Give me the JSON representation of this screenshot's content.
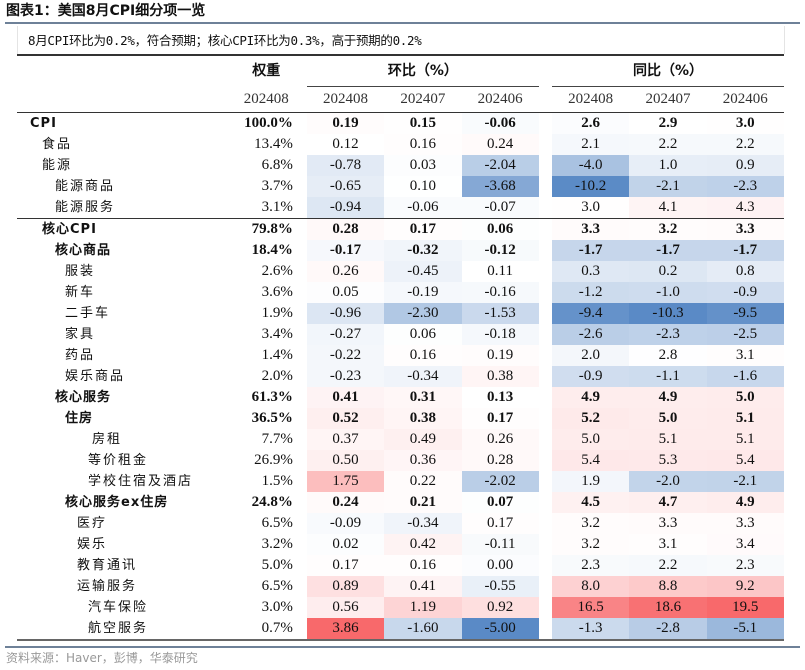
{
  "title": "图表1：美国8月CPI细分项一览",
  "subtitle": "8月CPI环比为0.2%，符合预期；核心CPI环比为0.3%，高于预期的0.2%",
  "header": {
    "weight_label": "权重",
    "mom_label": "环比（%）",
    "yoy_label": "同比（%）",
    "weight_period": "202408",
    "mom_periods": [
      "202408",
      "202407",
      "202406"
    ],
    "yoy_periods": [
      "202408",
      "202407",
      "202406"
    ]
  },
  "colors": {
    "positive": "#f8696b",
    "negative": "#5a8ac6",
    "neutral": "#ffffff"
  },
  "rows": [
    {
      "label": "CPI",
      "level": 0,
      "bold": true,
      "weight": "100.0%",
      "mom": [
        "0.19",
        "0.15",
        "-0.06"
      ],
      "yoy": [
        "2.6",
        "2.9",
        "3.0"
      ]
    },
    {
      "label": "食品",
      "level": 1,
      "bold": false,
      "weight": "13.4%",
      "mom": [
        "0.12",
        "0.16",
        "0.24"
      ],
      "yoy": [
        "2.1",
        "2.2",
        "2.2"
      ]
    },
    {
      "label": "能源",
      "level": 1,
      "bold": false,
      "weight": "6.8%",
      "mom": [
        "-0.78",
        "0.03",
        "-2.04"
      ],
      "yoy": [
        "-4.0",
        "1.0",
        "0.9"
      ]
    },
    {
      "label": "能源商品",
      "level": 2,
      "bold": false,
      "weight": "3.7%",
      "mom": [
        "-0.65",
        "0.10",
        "-3.68"
      ],
      "yoy": [
        "-10.2",
        "-2.1",
        "-2.3"
      ]
    },
    {
      "label": "能源服务",
      "level": 2,
      "bold": false,
      "weight": "3.1%",
      "mom": [
        "-0.94",
        "-0.06",
        "-0.07"
      ],
      "yoy": [
        "3.0",
        "4.1",
        "4.3"
      ]
    },
    {
      "label": "核心CPI",
      "level": 1,
      "bold": true,
      "weight": "79.8%",
      "mom": [
        "0.28",
        "0.17",
        "0.06"
      ],
      "yoy": [
        "3.3",
        "3.2",
        "3.3"
      ]
    },
    {
      "label": "核心商品",
      "level": 2,
      "bold": true,
      "weight": "18.4%",
      "mom": [
        "-0.17",
        "-0.32",
        "-0.12"
      ],
      "yoy": [
        "-1.7",
        "-1.7",
        "-1.7"
      ]
    },
    {
      "label": "服装",
      "level": 3,
      "bold": false,
      "weight": "2.6%",
      "mom": [
        "0.26",
        "-0.45",
        "0.11"
      ],
      "yoy": [
        "0.3",
        "0.2",
        "0.8"
      ]
    },
    {
      "label": "新车",
      "level": 3,
      "bold": false,
      "weight": "3.6%",
      "mom": [
        "0.05",
        "-0.19",
        "-0.16"
      ],
      "yoy": [
        "-1.2",
        "-1.0",
        "-0.9"
      ]
    },
    {
      "label": "二手车",
      "level": 3,
      "bold": false,
      "weight": "1.9%",
      "mom": [
        "-0.96",
        "-2.30",
        "-1.53"
      ],
      "yoy": [
        "-9.4",
        "-10.3",
        "-9.5"
      ]
    },
    {
      "label": "家具",
      "level": 3,
      "bold": false,
      "weight": "3.4%",
      "mom": [
        "-0.27",
        "0.06",
        "-0.18"
      ],
      "yoy": [
        "-2.6",
        "-2.3",
        "-2.5"
      ]
    },
    {
      "label": "药品",
      "level": 3,
      "bold": false,
      "weight": "1.4%",
      "mom": [
        "-0.22",
        "0.16",
        "0.19"
      ],
      "yoy": [
        "2.0",
        "2.8",
        "3.1"
      ]
    },
    {
      "label": "娱乐商品",
      "level": 3,
      "bold": false,
      "weight": "2.0%",
      "mom": [
        "-0.23",
        "-0.34",
        "0.38"
      ],
      "yoy": [
        "-0.9",
        "-1.1",
        "-1.6"
      ]
    },
    {
      "label": "核心服务",
      "level": 2,
      "bold": true,
      "weight": "61.3%",
      "mom": [
        "0.41",
        "0.31",
        "0.13"
      ],
      "yoy": [
        "4.9",
        "4.9",
        "5.0"
      ]
    },
    {
      "label": "住房",
      "level": 3,
      "bold": true,
      "weight": "36.5%",
      "mom": [
        "0.52",
        "0.38",
        "0.17"
      ],
      "yoy": [
        "5.2",
        "5.0",
        "5.1"
      ]
    },
    {
      "label": "房租",
      "level": 5,
      "bold": false,
      "weight": "7.7%",
      "mom": [
        "0.37",
        "0.49",
        "0.26"
      ],
      "yoy": [
        "5.0",
        "5.1",
        "5.1"
      ]
    },
    {
      "label": "等价租金",
      "level": 4,
      "bold": false,
      "weight": "26.9%",
      "mom": [
        "0.50",
        "0.36",
        "0.28"
      ],
      "yoy": [
        "5.4",
        "5.3",
        "5.4"
      ]
    },
    {
      "label": "学校住宿及酒店",
      "level": 4,
      "bold": false,
      "weight": "1.5%",
      "mom": [
        "1.75",
        "0.22",
        "-2.02"
      ],
      "yoy": [
        "1.9",
        "-2.0",
        "-2.1"
      ]
    },
    {
      "label": "核心服务ex住房",
      "level": 3,
      "bold": true,
      "weight": "24.8%",
      "mom": [
        "0.24",
        "0.21",
        "0.07"
      ],
      "yoy": [
        "4.5",
        "4.7",
        "4.9"
      ]
    },
    {
      "label": "医疗",
      "level": 3.5,
      "bold": false,
      "weight": "6.5%",
      "mom": [
        "-0.09",
        "-0.34",
        "0.17"
      ],
      "yoy": [
        "3.2",
        "3.3",
        "3.3"
      ]
    },
    {
      "label": "娱乐",
      "level": 3.5,
      "bold": false,
      "weight": "3.2%",
      "mom": [
        "0.02",
        "0.42",
        "-0.11"
      ],
      "yoy": [
        "3.2",
        "3.1",
        "3.4"
      ]
    },
    {
      "label": "教育通讯",
      "level": 3.5,
      "bold": false,
      "weight": "5.0%",
      "mom": [
        "0.17",
        "0.16",
        "0.00"
      ],
      "yoy": [
        "2.3",
        "2.2",
        "2.3"
      ]
    },
    {
      "label": "运输服务",
      "level": 3.5,
      "bold": false,
      "weight": "6.5%",
      "mom": [
        "0.89",
        "0.41",
        "-0.55"
      ],
      "yoy": [
        "8.0",
        "8.8",
        "9.2"
      ]
    },
    {
      "label": "汽车保险",
      "level": 4,
      "bold": false,
      "weight": "3.0%",
      "mom": [
        "0.56",
        "1.19",
        "0.92"
      ],
      "yoy": [
        "16.5",
        "18.6",
        "19.5"
      ]
    },
    {
      "label": "航空服务",
      "level": 4,
      "bold": false,
      "weight": "0.7%",
      "mom": [
        "3.86",
        "-1.60",
        "-5.00"
      ],
      "yoy": [
        "-1.3",
        "-2.8",
        "-5.1"
      ]
    }
  ],
  "source": "资料来源：Haver，彭博，华泰研究"
}
